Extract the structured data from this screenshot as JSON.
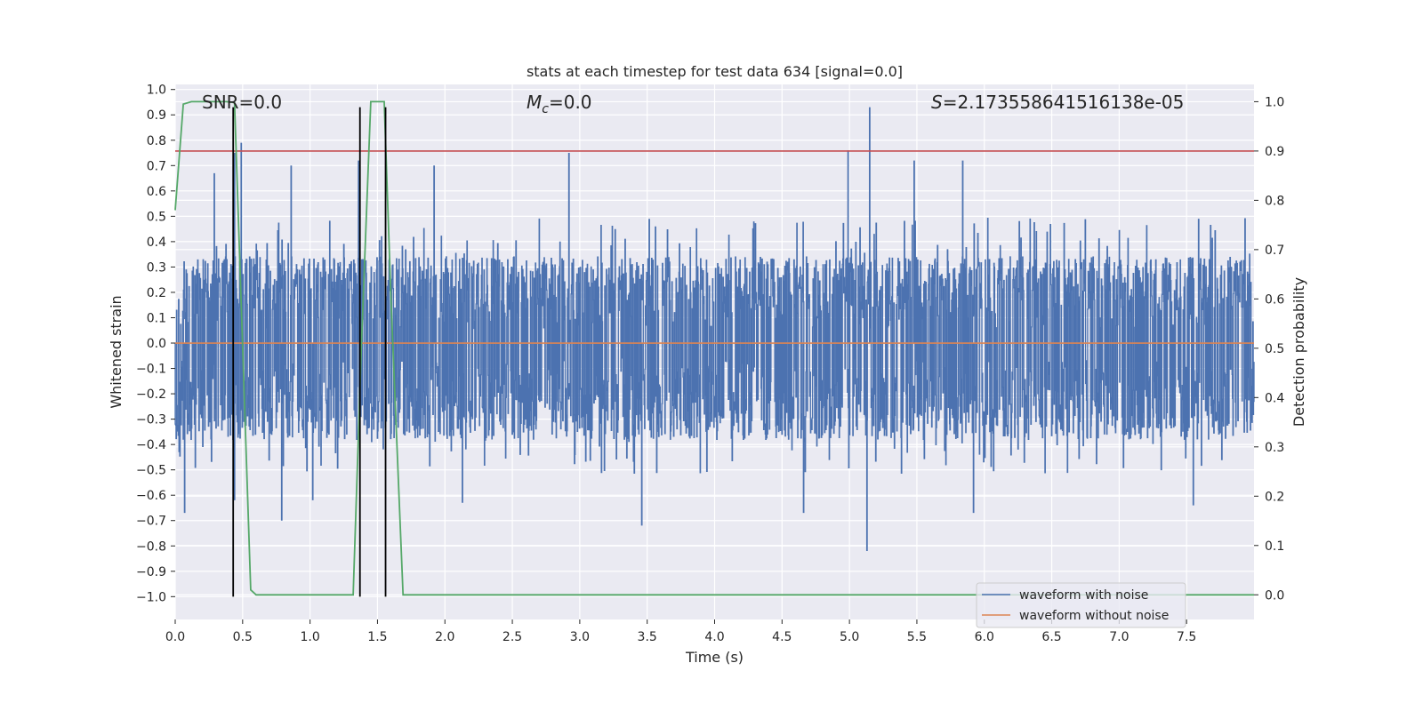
{
  "chart_data": {
    "type": "line",
    "title": "stats at each timestep for test data 634 [signal=0.0]",
    "xlabel": "Time (s)",
    "ylabel": "Whitened strain",
    "y2label": "Detection probability",
    "xlim": [
      0.0,
      8.0
    ],
    "ylim": [
      -1.09,
      1.02
    ],
    "y2lim": [
      -0.05,
      1.035
    ],
    "x_ticks": [
      "0.0",
      "0.5",
      "1.0",
      "1.5",
      "2.0",
      "2.5",
      "3.0",
      "3.5",
      "4.0",
      "4.5",
      "5.0",
      "5.5",
      "6.0",
      "6.5",
      "7.0",
      "7.5"
    ],
    "y_ticks": [
      "1.0",
      "0.9",
      "0.8",
      "0.7",
      "0.6",
      "0.5",
      "0.4",
      "0.3",
      "0.2",
      "0.1",
      "0.0",
      "−0.1",
      "−0.2",
      "−0.3",
      "−0.4",
      "−0.5",
      "−0.6",
      "−0.7",
      "−0.8",
      "−0.9",
      "−1.0"
    ],
    "y2_ticks": [
      "0.0",
      "0.1",
      "0.2",
      "0.3",
      "0.4",
      "0.5",
      "0.6",
      "0.7",
      "0.8",
      "0.9",
      "1.0"
    ],
    "grid": true,
    "legend_position": "bottom-right",
    "annotations": {
      "snr": "SNR=0.0",
      "mc_symbol": "M",
      "mc_sub": "c",
      "mc_value": "=0.0",
      "s_symbol": "S",
      "s_value": "=2.173558641516138e-05"
    },
    "series": [
      {
        "name": "waveform with noise",
        "color": "#4c72b0",
        "axis": "left",
        "description_style": "dense noise band",
        "envelope": {
          "upper_typical": 0.34,
          "lower_typical": -0.38,
          "upper_peaks": [
            {
              "x": 0.29,
              "y": 0.67
            },
            {
              "x": 0.44,
              "y": 0.75
            },
            {
              "x": 0.49,
              "y": 0.79
            },
            {
              "x": 0.86,
              "y": 0.7
            },
            {
              "x": 1.36,
              "y": 0.72
            },
            {
              "x": 1.92,
              "y": 0.7
            },
            {
              "x": 2.92,
              "y": 0.75
            },
            {
              "x": 4.99,
              "y": 0.76
            },
            {
              "x": 5.15,
              "y": 0.93
            },
            {
              "x": 5.48,
              "y": 0.72
            },
            {
              "x": 5.84,
              "y": 0.72
            }
          ],
          "lower_peaks": [
            {
              "x": 0.07,
              "y": -0.67
            },
            {
              "x": 0.44,
              "y": -0.62
            },
            {
              "x": 0.79,
              "y": -0.7
            },
            {
              "x": 1.02,
              "y": -0.62
            },
            {
              "x": 2.13,
              "y": -0.63
            },
            {
              "x": 3.46,
              "y": -0.72
            },
            {
              "x": 4.66,
              "y": -0.67
            },
            {
              "x": 5.13,
              "y": -0.82
            },
            {
              "x": 5.92,
              "y": -0.67
            },
            {
              "x": 7.55,
              "y": -0.64
            }
          ]
        }
      },
      {
        "name": "waveform without noise",
        "color": "#dd8452",
        "axis": "left",
        "x": [
          0.0,
          8.0
        ],
        "y": [
          0.0,
          0.0
        ]
      },
      {
        "name": "",
        "color": "#55a868",
        "axis": "right",
        "x": [
          0.0,
          0.06,
          0.12,
          0.2,
          0.3,
          0.38,
          0.44,
          0.56,
          0.6,
          1.0,
          1.3,
          1.32,
          1.38,
          1.45,
          1.55,
          1.6,
          1.69,
          1.8,
          8.0
        ],
        "y": [
          0.78,
          0.995,
          1.0,
          1.0,
          1.0,
          1.0,
          0.998,
          0.01,
          0.0,
          0.0,
          0.0,
          0.0,
          0.5,
          1.0,
          1.0,
          0.6,
          0.0,
          0.0,
          0.0
        ]
      }
    ],
    "threshold_line": {
      "color": "#c44e52",
      "y2": 0.9
    },
    "vertical_markers": [
      {
        "x": 0.43,
        "y_from": -1.0,
        "y_to": 0.93
      },
      {
        "x": 1.37,
        "y_from": -1.0,
        "y_to": 0.93
      },
      {
        "x": 1.56,
        "y_from": -1.0,
        "y_to": 0.93
      }
    ]
  }
}
